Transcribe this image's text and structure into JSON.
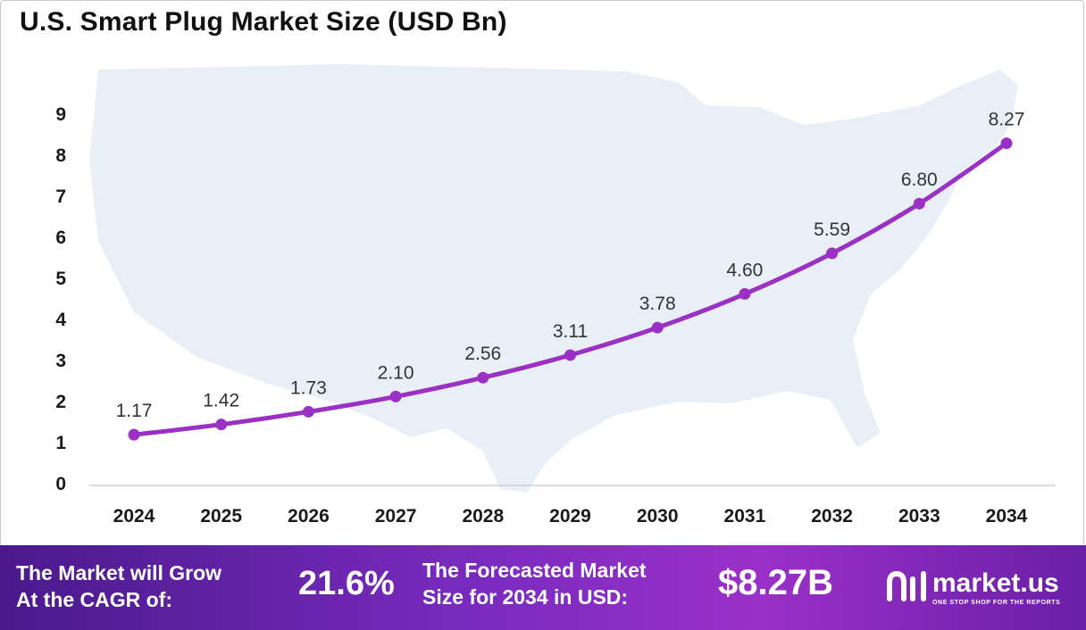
{
  "title": "U.S. Smart Plug Market Size (USD Bn)",
  "chart_data": {
    "type": "line",
    "title": "U.S. Smart Plug Market Size (USD Bn)",
    "x": [
      "2024",
      "2025",
      "2026",
      "2027",
      "2028",
      "2029",
      "2030",
      "2031",
      "2032",
      "2033",
      "2034"
    ],
    "series": [
      {
        "values": [
          1.17,
          1.42,
          1.73,
          2.1,
          2.56,
          3.11,
          3.78,
          4.6,
          5.59,
          6.8,
          8.27
        ]
      }
    ],
    "data_labels": [
      "1.17",
      "1.42",
      "1.73",
      "2.10",
      "2.56",
      "3.11",
      "3.78",
      "4.60",
      "5.59",
      "6.80",
      "8.27"
    ],
    "y_ticks": [
      "0",
      "1",
      "2",
      "3",
      "4",
      "5",
      "6",
      "7",
      "8",
      "9"
    ],
    "ylim": [
      0,
      9
    ],
    "grid": false,
    "legend": "none",
    "background_map": "united-states-silhouette",
    "line_color": "#9b30c4",
    "map_color": "#e9eff7"
  },
  "footer": {
    "cagr_text": "The Market will Grow\nAt the CAGR of:",
    "cagr_value": "21.6%",
    "forecast_text": "The Forecasted Market\nSize for 2034 in USD:",
    "forecast_value": "$8.27B",
    "brand_name": "market.us",
    "brand_tagline": "ONE STOP SHOP FOR THE REPORTS",
    "brand_icon": "market-us-logo-icon"
  }
}
